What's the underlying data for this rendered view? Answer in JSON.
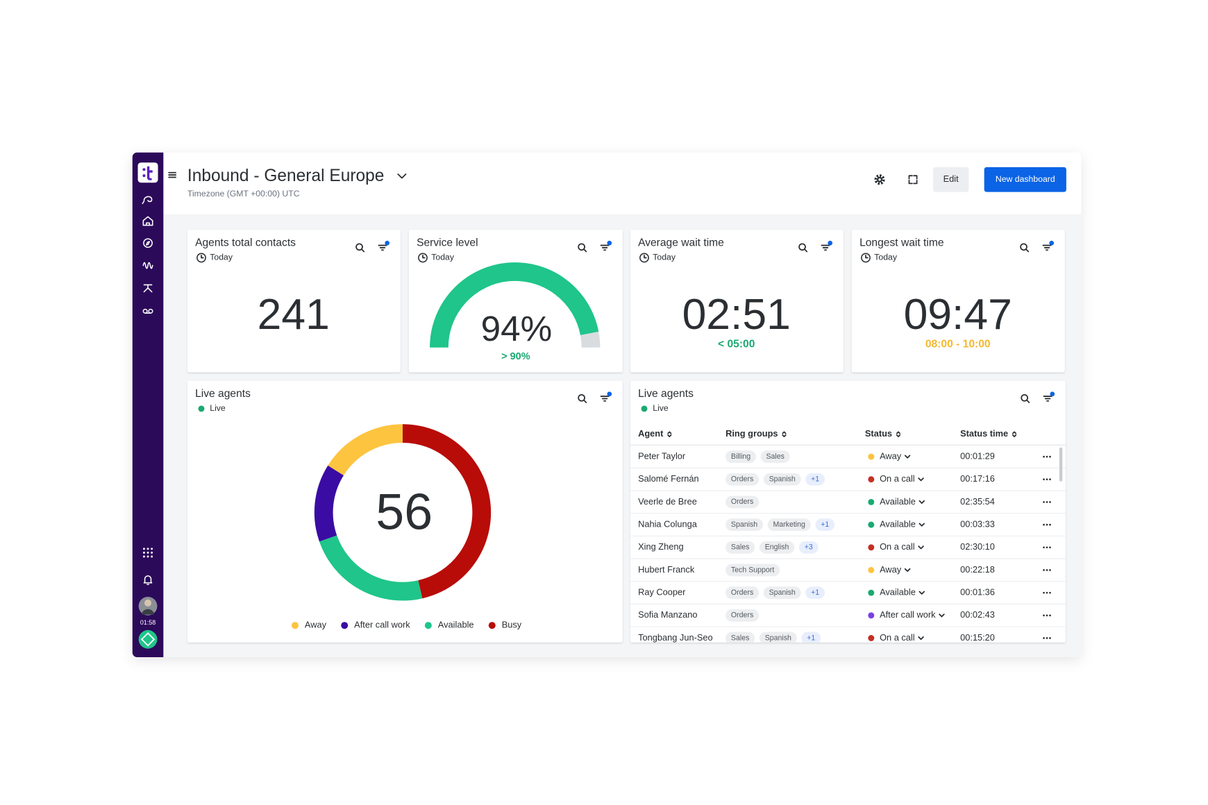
{
  "header": {
    "title": "Inbound - General Europe",
    "timezone": "Timezone (GMT +00:00) UTC",
    "edit_button": "Edit",
    "new_button": "New dashboard"
  },
  "sidebar": {
    "timer": "01:58"
  },
  "kpis": [
    {
      "title": "Agents total contacts",
      "period": "Today",
      "value": "241"
    },
    {
      "title": "Average wait time",
      "period": "Today",
      "value": "02:51",
      "target": "< 05:00",
      "target_color": "#1aa971"
    },
    {
      "title": "Longest wait time",
      "period": "Today",
      "value": "09:47",
      "target": "08:00 - 10:00",
      "target_color": "#f5b82e"
    }
  ],
  "chart_data": [
    {
      "type": "gauge",
      "title": "Service level",
      "subtitle": "Today",
      "values": [
        94
      ],
      "value_labels": [
        "94%"
      ],
      "ylim": [
        0,
        100
      ],
      "target": "> 90%",
      "colors": [
        "#1fc58a",
        "#d9dcdf"
      ],
      "target_color": "#1aa971"
    },
    {
      "type": "donut",
      "title": "Live agents",
      "subtitle": "Live",
      "total": 56,
      "categories": [
        "Busy",
        "Available",
        "After call work",
        "Away"
      ],
      "values": [
        26,
        13,
        8,
        9
      ],
      "colors": [
        "#b80c09",
        "#1fc58a",
        "#3a0ca3",
        "#fdc43f"
      ]
    }
  ],
  "table": {
    "title": "Live agents",
    "subtitle": "Live",
    "columns": [
      "Agent",
      "Ring groups",
      "Status",
      "Status time"
    ],
    "rows": [
      {
        "agent": "Peter Taylor",
        "groups": [
          "Billing",
          "Sales"
        ],
        "status": "Away",
        "color": "#fdc43f",
        "time": "00:01:29"
      },
      {
        "agent": "Salomé Fernán",
        "groups": [
          "Orders",
          "Spanish",
          "+1"
        ],
        "status": "On a call",
        "color": "#c62f22",
        "time": "00:17:16"
      },
      {
        "agent": "Veerle de Bree",
        "groups": [
          "Orders"
        ],
        "status": "Available",
        "color": "#1aa971",
        "time": "02:35:54"
      },
      {
        "agent": "Nahia Colunga",
        "groups": [
          "Spanish",
          "Marketing",
          "+1"
        ],
        "status": "Available",
        "color": "#1aa971",
        "time": "00:03:33"
      },
      {
        "agent": "Xing Zheng",
        "groups": [
          "Sales",
          "English",
          "+3"
        ],
        "status": "On a call",
        "color": "#c62f22",
        "time": "02:30:10"
      },
      {
        "agent": "Hubert Franck",
        "groups": [
          "Tech Support"
        ],
        "status": "Away",
        "color": "#fdc43f",
        "time": "00:22:18"
      },
      {
        "agent": "Ray Cooper",
        "groups": [
          "Orders",
          "Spanish",
          "+1"
        ],
        "status": "Available",
        "color": "#1aa971",
        "time": "00:01:36"
      },
      {
        "agent": "Sofia Manzano",
        "groups": [
          "Orders"
        ],
        "status": "After call work",
        "color": "#7b3fe4",
        "time": "00:02:43"
      },
      {
        "agent": "Tongbang Jun-Seo",
        "groups": [
          "Sales",
          "Spanish",
          "+1"
        ],
        "status": "On a call",
        "color": "#c62f22",
        "time": "00:15:20"
      }
    ]
  }
}
